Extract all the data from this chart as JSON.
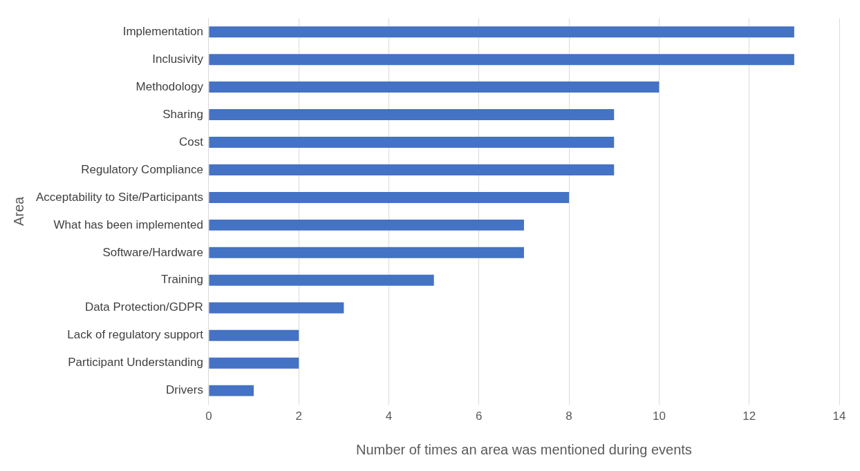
{
  "chart_data": {
    "type": "bar",
    "orientation": "horizontal",
    "xlabel": "Number of times an area was mentioned during events",
    "ylabel": "Area",
    "categories": [
      "Implementation",
      "Inclusivity",
      "Methodology",
      "Sharing",
      "Cost",
      "Regulatory Compliance",
      "Acceptability to Site/Participants",
      "What has been implemented",
      "Software/Hardware",
      "Training",
      "Data Protection/GDPR",
      "Lack of regulatory support",
      "Participant Understanding",
      "Drivers"
    ],
    "values": [
      13,
      13,
      10,
      9,
      9,
      9,
      8,
      7,
      7,
      5,
      3,
      2,
      2,
      1
    ],
    "color": "#4472c4",
    "xlim": [
      0,
      14
    ],
    "xticks": [
      0,
      2,
      4,
      6,
      8,
      10,
      12,
      14
    ],
    "grid": "x"
  }
}
